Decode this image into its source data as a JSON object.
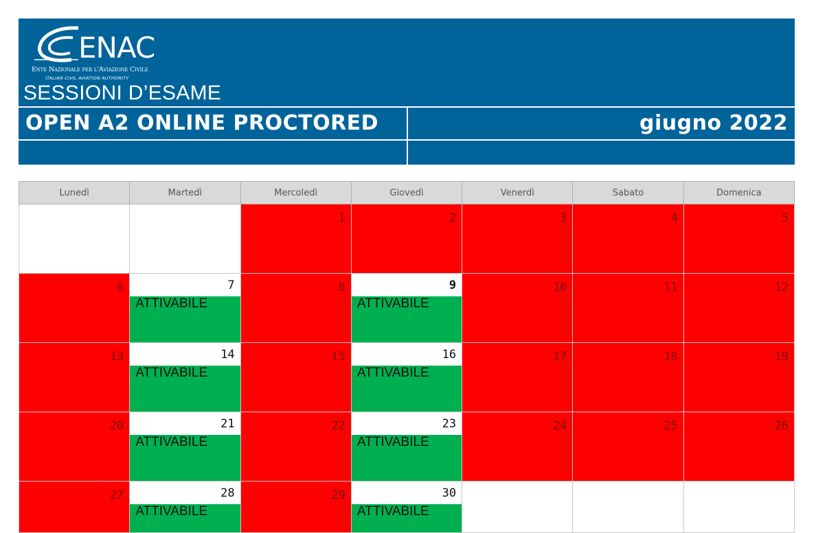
{
  "logo": {
    "word": "ENAC",
    "line1": "Ente Nazionale per l'Aviazione Civile",
    "line2": "ITALIAN CIVIL AVIATION AUTHORITY"
  },
  "header": {
    "section_title": "SESSIONI D’ESAME",
    "exam_name": "OPEN A2 ONLINE PROCTORED",
    "month": "giugno 2022"
  },
  "colors": {
    "header_blue": "#00639a",
    "unavailable": "#ff0000",
    "available": "#00b050",
    "weekday_header": "#d9d9d9"
  },
  "calendar": {
    "weekdays": [
      "Lunedì",
      "Martedì",
      "Mercoledì",
      "Giovedì",
      "Venerdì",
      "Sabato",
      "Domenica"
    ],
    "weeks": [
      [
        {
          "day": "",
          "state": "empty"
        },
        {
          "day": "",
          "state": "empty"
        },
        {
          "day": "1",
          "state": "unavailable"
        },
        {
          "day": "2",
          "state": "unavailable"
        },
        {
          "day": "3",
          "state": "unavailable"
        },
        {
          "day": "4",
          "state": "unavailable"
        },
        {
          "day": "5",
          "state": "unavailable"
        }
      ],
      [
        {
          "day": "6",
          "state": "unavailable"
        },
        {
          "day": "7",
          "state": "available",
          "label": "ATTIVABILE"
        },
        {
          "day": "8",
          "state": "unavailable"
        },
        {
          "day": "9",
          "state": "available",
          "label": "ATTIVABILE",
          "bold": true
        },
        {
          "day": "10",
          "state": "unavailable"
        },
        {
          "day": "11",
          "state": "unavailable"
        },
        {
          "day": "12",
          "state": "unavailable"
        }
      ],
      [
        {
          "day": "13",
          "state": "unavailable"
        },
        {
          "day": "14",
          "state": "available",
          "label": "ATTIVABILE"
        },
        {
          "day": "15",
          "state": "unavailable"
        },
        {
          "day": "16",
          "state": "available",
          "label": "ATTIVABILE"
        },
        {
          "day": "17",
          "state": "unavailable"
        },
        {
          "day": "18",
          "state": "unavailable"
        },
        {
          "day": "19",
          "state": "unavailable"
        }
      ],
      [
        {
          "day": "20",
          "state": "unavailable"
        },
        {
          "day": "21",
          "state": "available",
          "label": "ATTIVABILE"
        },
        {
          "day": "22",
          "state": "unavailable"
        },
        {
          "day": "23",
          "state": "available",
          "label": "ATTIVABILE"
        },
        {
          "day": "24",
          "state": "unavailable"
        },
        {
          "day": "25",
          "state": "unavailable"
        },
        {
          "day": "26",
          "state": "unavailable"
        }
      ],
      [
        {
          "day": "27",
          "state": "unavailable"
        },
        {
          "day": "28",
          "state": "available",
          "label": "ATTIVABILE"
        },
        {
          "day": "29",
          "state": "unavailable"
        },
        {
          "day": "30",
          "state": "available",
          "label": "ATTIVABILE"
        },
        {
          "day": "",
          "state": "empty"
        },
        {
          "day": "",
          "state": "empty"
        },
        {
          "day": "",
          "state": "empty"
        }
      ]
    ]
  }
}
